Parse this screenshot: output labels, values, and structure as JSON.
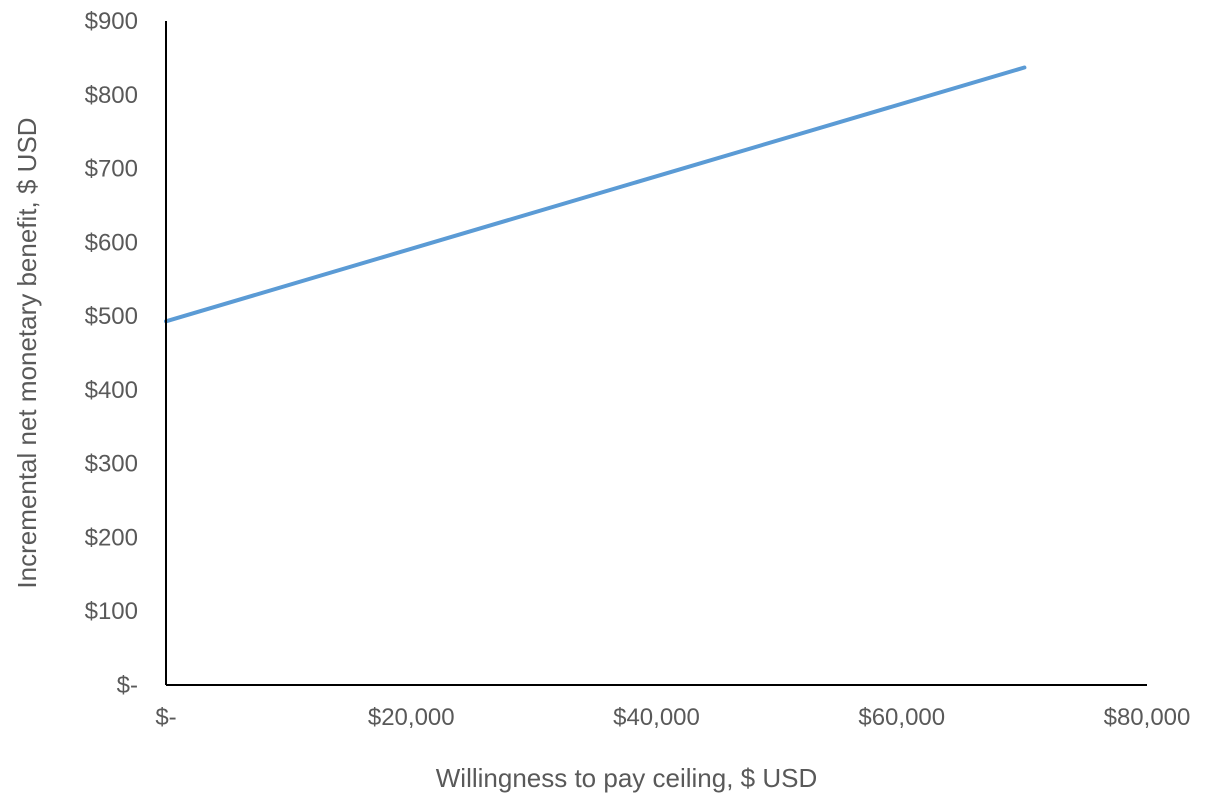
{
  "chart_data": {
    "type": "line",
    "title": "",
    "xlabel": "Willingness to pay ceiling, $ USD",
    "ylabel": "Incremental net monetary benefit, $ USD",
    "xlim": [
      0,
      80000
    ],
    "ylim": [
      0,
      900
    ],
    "x_ticks": [
      0,
      20000,
      40000,
      60000,
      80000
    ],
    "x_tick_labels": [
      "$-",
      "$20,000",
      "$40,000",
      "$60,000",
      "$80,000"
    ],
    "y_ticks": [
      0,
      100,
      200,
      300,
      400,
      500,
      600,
      700,
      800,
      900
    ],
    "y_tick_labels": [
      "$-",
      "$100",
      "$200",
      "$300",
      "$400",
      "$500",
      "$600",
      "$700",
      "$800",
      "$900"
    ],
    "grid": false,
    "series": [
      {
        "color": "#5b9bd5",
        "x": [
          0,
          70000
        ],
        "y": [
          493,
          837
        ]
      }
    ]
  }
}
